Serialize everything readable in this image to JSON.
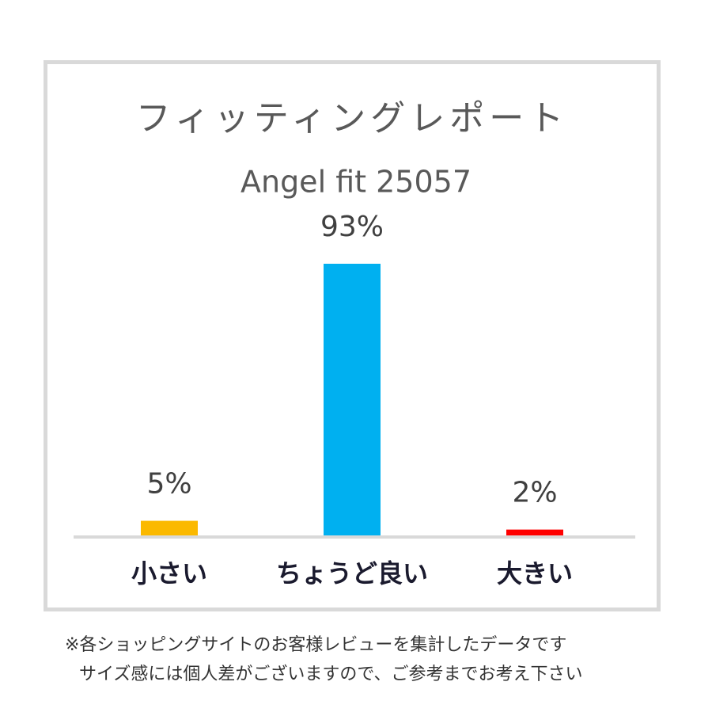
{
  "chart_data": {
    "type": "bar",
    "title": "フィッティングレポート",
    "subtitle": "Angel fit 25057",
    "categories": [
      "小さい",
      "ちょうど良い",
      "大きい"
    ],
    "values": [
      5,
      93,
      2
    ],
    "value_labels": [
      "5%",
      "93%",
      "2%"
    ],
    "colors": [
      "#fbb900",
      "#00b0f0",
      "#ff0000"
    ],
    "footnotes": [
      "※各ショッピングサイトのお客様レビューを集計したデータです",
      "サイズ感には個人差がございますので、ご参考までお考え下さい"
    ]
  }
}
